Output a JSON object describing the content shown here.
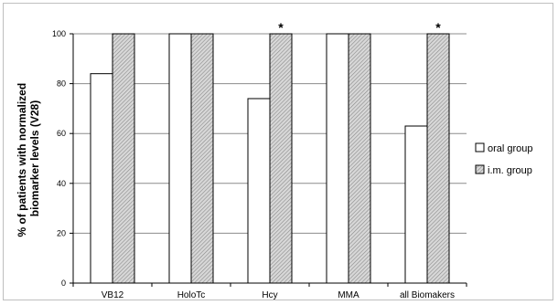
{
  "chart_data": {
    "type": "bar",
    "title": "",
    "ylabel": "% of patients with normalized biomarker levels (V28)",
    "ylabel_lines": [
      "% of patients with normalized",
      "biomarker levels (V28)"
    ],
    "xlabel": "",
    "ylim": [
      0,
      100
    ],
    "yticks": [
      "0",
      "20",
      "40",
      "60",
      "80",
      "100"
    ],
    "ytick_values": [
      0,
      20,
      40,
      60,
      80,
      100
    ],
    "categories": [
      "VB12",
      "HoloTc",
      "Hcy",
      "MMA",
      "all Biomakers"
    ],
    "series": [
      {
        "name": "oral group",
        "values": [
          84,
          100,
          74,
          100,
          63
        ],
        "fill": "#ffffff"
      },
      {
        "name": "i.m. group",
        "values": [
          100,
          100,
          100,
          100,
          100
        ],
        "fill": "#c8c8c8"
      }
    ],
    "significance_marker": "*",
    "significance": [
      false,
      false,
      true,
      false,
      true
    ],
    "grid": true,
    "legend_position": "right"
  }
}
